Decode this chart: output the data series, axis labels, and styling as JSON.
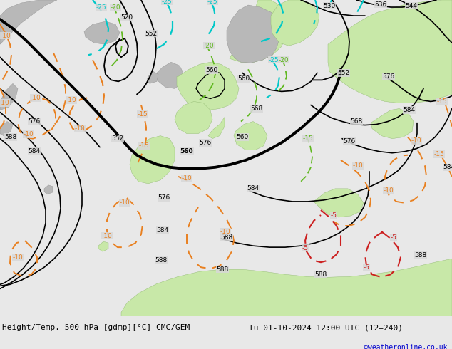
{
  "title_left": "Height/Temp. 500 hPa [gdmp][°C] CMC/GEM",
  "title_right": "Tu 01-10-2024 12:00 UTC (12+240)",
  "credit": "©weatheronline.co.uk",
  "sea_color": "#d8d8d8",
  "land_color": "#c8e8a8",
  "land_gray": "#b8b8b8",
  "height_color": "#000000",
  "orange_color": "#e88020",
  "cyan_color": "#00c8c8",
  "green_color": "#60b820",
  "red_color": "#cc2020",
  "lbl_fs": 6.5,
  "title_fs": 8.0,
  "credit_fs": 7.0,
  "credit_color": "#0000cc"
}
